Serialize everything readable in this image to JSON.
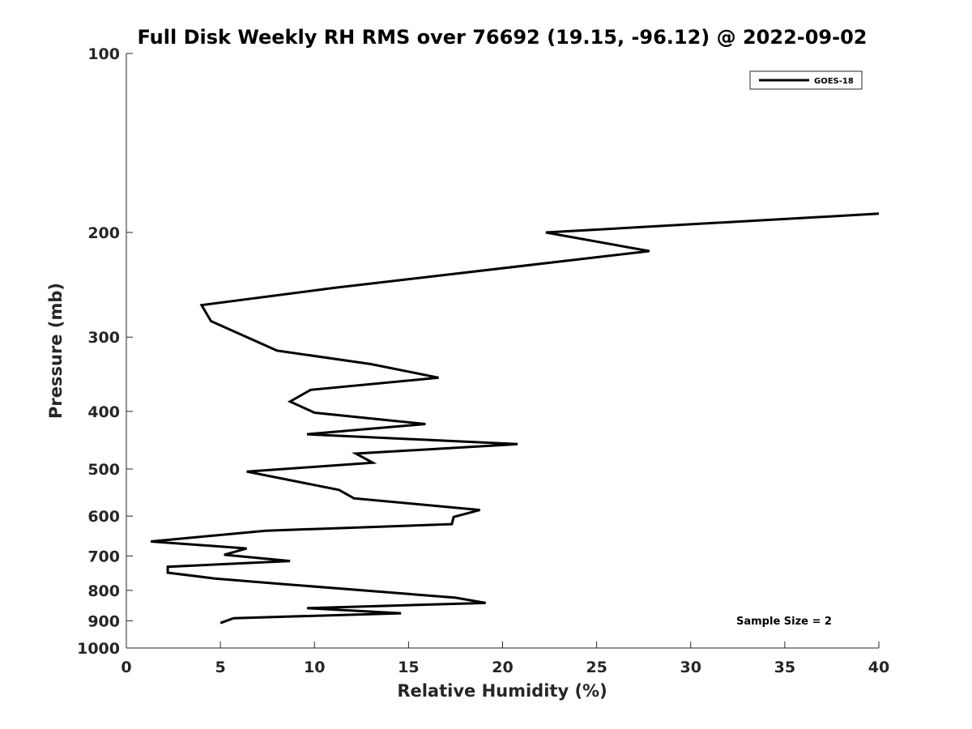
{
  "chart_data": {
    "type": "line",
    "title": "Full Disk Weekly RH RMS over 76692 (19.15, -96.12) @ 2022-09-02",
    "xlabel": "Relative Humidity (%)",
    "ylabel": "Pressure (mb)",
    "xlim": [
      0,
      40
    ],
    "ylim": [
      100,
      1000
    ],
    "yscale": "log",
    "y_reversed": true,
    "xticks": [
      0,
      5,
      10,
      15,
      20,
      25,
      30,
      35,
      40
    ],
    "yticks": [
      100,
      200,
      300,
      400,
      500,
      600,
      700,
      800,
      900,
      1000
    ],
    "grid": false,
    "legend_position": "top-right",
    "annotation": "Sample Size = 2",
    "colors": {
      "series": "#000000",
      "axis": "#262626"
    },
    "series": [
      {
        "name": "GOES-18",
        "points": [
          [
            40.0,
            186
          ],
          [
            22.3,
            200
          ],
          [
            27.8,
            215
          ],
          [
            11.0,
            248
          ],
          [
            4.0,
            265
          ],
          [
            4.5,
            282
          ],
          [
            8.0,
            316
          ],
          [
            13.0,
            333
          ],
          [
            16.6,
            351
          ],
          [
            9.8,
            368
          ],
          [
            8.7,
            385
          ],
          [
            10.0,
            402
          ],
          [
            15.9,
            420
          ],
          [
            9.6,
            437
          ],
          [
            20.8,
            454
          ],
          [
            12.2,
            471
          ],
          [
            13.1,
            488
          ],
          [
            6.4,
            505
          ],
          [
            11.3,
            542
          ],
          [
            12.1,
            560
          ],
          [
            18.8,
            586
          ],
          [
            17.4,
            602
          ],
          [
            17.3,
            619
          ],
          [
            7.4,
            635
          ],
          [
            1.3,
            662
          ],
          [
            6.4,
            680
          ],
          [
            5.2,
            697
          ],
          [
            8.7,
            714
          ],
          [
            2.2,
            730
          ],
          [
            2.2,
            747
          ],
          [
            4.7,
            764
          ],
          [
            8.4,
            781
          ],
          [
            17.5,
            823
          ],
          [
            19.1,
            840
          ],
          [
            9.6,
            857
          ],
          [
            14.6,
            874
          ],
          [
            5.7,
            891
          ],
          [
            5.0,
            908
          ]
        ]
      }
    ]
  }
}
